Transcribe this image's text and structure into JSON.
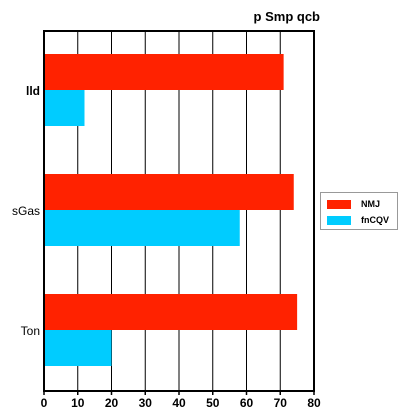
{
  "chart_data": {
    "type": "bar",
    "orientation": "horizontal",
    "title": "p Smp qcb",
    "xlabel": "",
    "ylabel": "",
    "categories": [
      "lld",
      "sGas",
      "Ton"
    ],
    "series": [
      {
        "name": "NMJ",
        "color": "#ff2200",
        "values": [
          71,
          74,
          75
        ]
      },
      {
        "name": "fnCQV",
        "color": "#00ccff",
        "values": [
          12,
          58,
          20
        ]
      }
    ],
    "xlim": [
      0,
      80
    ],
    "xticks": [
      0,
      10,
      20,
      30,
      40,
      50,
      60,
      70,
      80
    ],
    "grid": true,
    "legend_position": "right"
  }
}
